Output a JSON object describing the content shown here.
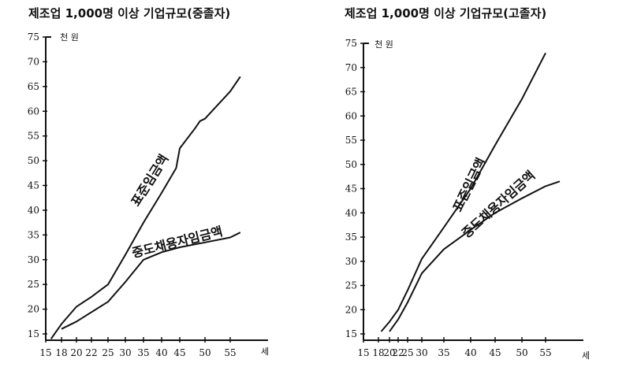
{
  "chart_data": [
    {
      "type": "line",
      "title": "제조업 1,000명 이상 기업규모(중졸자)",
      "y_unit": "천 원",
      "x_unit": "세",
      "xlim": [
        15,
        58
      ],
      "ylim": [
        13,
        75
      ],
      "x_ticks": [
        "15",
        "18",
        "20",
        "22",
        "25",
        "30",
        "35",
        "40",
        "45",
        "50",
        "55"
      ],
      "y_ticks": [
        "15",
        "20",
        "25",
        "30",
        "35",
        "40",
        "45",
        "50",
        "55",
        "60",
        "65",
        "70",
        "75"
      ],
      "grid": false,
      "series": [
        {
          "name": "표준임금액",
          "x": [
            16,
            18,
            20,
            22,
            25,
            30,
            35,
            40,
            44,
            45,
            48,
            49,
            50,
            55,
            57
          ],
          "y": [
            14,
            17,
            20.5,
            22.5,
            25,
            31,
            37.5,
            43.5,
            48.5,
            52.5,
            56.5,
            58,
            58.5,
            64,
            67
          ]
        },
        {
          "name": "중도채용자임금액",
          "x": [
            18,
            20,
            25,
            30,
            35,
            40,
            45,
            50,
            55,
            57
          ],
          "y": [
            16,
            17.5,
            21.5,
            25.5,
            30,
            31.5,
            32.5,
            33.5,
            34.5,
            35.5
          ]
        }
      ]
    },
    {
      "type": "line",
      "title": "제조업 1,000명 이상 기업규모(고졸자)",
      "y_unit": "천 원",
      "x_unit": "세",
      "xlim": [
        15,
        58
      ],
      "ylim": [
        13,
        75
      ],
      "x_ticks": [
        "15",
        "18",
        "20",
        "22",
        "25",
        "30",
        "35",
        "40",
        "45",
        "50",
        "55"
      ],
      "y_ticks": [
        "15",
        "20",
        "25",
        "30",
        "35",
        "40",
        "45",
        "50",
        "55",
        "60",
        "65",
        "70",
        "75"
      ],
      "grid": false,
      "series": [
        {
          "name": "표준임금액",
          "x": [
            18.5,
            20,
            22,
            25,
            30,
            35,
            40,
            45,
            50,
            55
          ],
          "y": [
            15.5,
            17.5,
            20,
            24,
            30.5,
            37,
            45,
            54,
            63.5,
            73
          ]
        },
        {
          "name": "중도채용자임금액",
          "x": [
            20,
            22,
            25,
            30,
            35,
            40,
            45,
            50,
            55,
            58
          ],
          "y": [
            15.5,
            18,
            21.5,
            27.5,
            32.5,
            36.5,
            40,
            43,
            45.5,
            46.5
          ]
        }
      ]
    }
  ]
}
